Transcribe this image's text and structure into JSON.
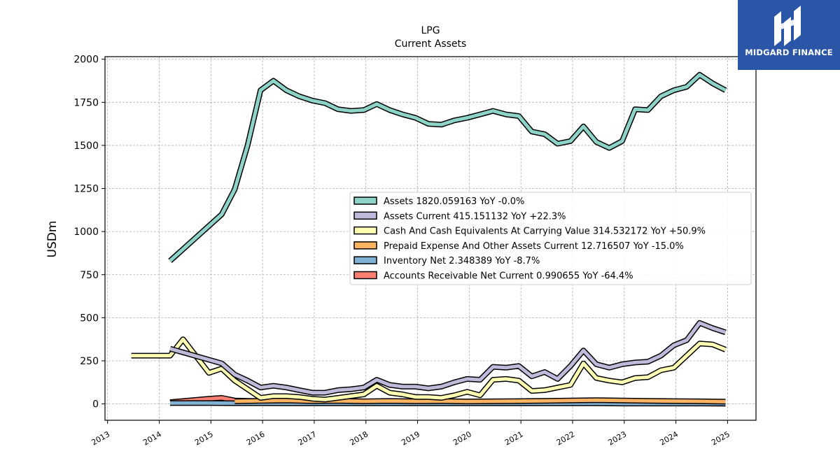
{
  "brand": {
    "name": "MIDGARD FINANCE",
    "bg_color": "#2b56a8",
    "icon": "midgard-logo-icon"
  },
  "chart_data": {
    "type": "line",
    "title": "LPG",
    "subtitle": "Current  Assets",
    "ylabel": "USDm",
    "xlabel": "",
    "xlim": [
      2012.95,
      2025.55
    ],
    "ylim": [
      -95,
      2015
    ],
    "yticks": [
      0,
      250,
      500,
      750,
      1000,
      1250,
      1500,
      1750,
      2000
    ],
    "ytick_labels": [
      "0",
      "250",
      "500",
      "750",
      "1000",
      "1250",
      "1500",
      "1750",
      "2000"
    ],
    "xticks": [
      2013,
      2014,
      2015,
      2016,
      2017,
      2018,
      2019,
      2020,
      2021,
      2022,
      2023,
      2024,
      2025
    ],
    "xtick_labels": [
      "2013",
      "2014",
      "2015",
      "2016",
      "2017",
      "2018",
      "2019",
      "2020",
      "2021",
      "2022",
      "2023",
      "2024",
      "2025"
    ],
    "grid": true,
    "legend_position": "center-right",
    "series": [
      {
        "name": "Assets",
        "legend": "Assets  1820.059163 YoY -0.0%",
        "color": "#8dd3c7",
        "x": [
          2014.21,
          2015.21,
          2015.46,
          2015.71,
          2015.96,
          2016.21,
          2016.46,
          2016.71,
          2016.96,
          2017.21,
          2017.46,
          2017.71,
          2017.96,
          2018.21,
          2018.46,
          2018.71,
          2018.96,
          2019.21,
          2019.46,
          2019.71,
          2019.96,
          2020.21,
          2020.46,
          2020.71,
          2020.96,
          2021.21,
          2021.46,
          2021.71,
          2021.96,
          2022.21,
          2022.46,
          2022.71,
          2022.96,
          2023.21,
          2023.46,
          2023.71,
          2023.96,
          2024.21,
          2024.46,
          2024.71,
          2024.96
        ],
        "y": [
          830,
          1100,
          1245,
          1500,
          1820,
          1875,
          1820,
          1785,
          1760,
          1745,
          1710,
          1700,
          1705,
          1740,
          1705,
          1680,
          1660,
          1625,
          1620,
          1645,
          1660,
          1680,
          1700,
          1680,
          1670,
          1580,
          1565,
          1510,
          1525,
          1610,
          1520,
          1485,
          1525,
          1710,
          1705,
          1785,
          1820,
          1840,
          1910,
          1860,
          1820
        ]
      },
      {
        "name": "Assets Current",
        "legend": "Assets Current  415.151132 YoY +22.3%",
        "color": "#bebada",
        "x": [
          2014.21,
          2015.21,
          2015.46,
          2015.71,
          2015.96,
          2016.21,
          2016.46,
          2016.71,
          2016.96,
          2017.21,
          2017.46,
          2017.71,
          2017.96,
          2018.21,
          2018.46,
          2018.71,
          2018.96,
          2019.21,
          2019.46,
          2019.71,
          2019.96,
          2020.21,
          2020.46,
          2020.71,
          2020.96,
          2021.21,
          2021.46,
          2021.71,
          2021.96,
          2022.21,
          2022.46,
          2022.71,
          2022.96,
          2023.21,
          2023.46,
          2023.71,
          2023.96,
          2024.21,
          2024.46,
          2024.71,
          2024.96
        ],
        "y": [
          320,
          235,
          170,
          135,
          95,
          105,
          95,
          80,
          65,
          65,
          80,
          85,
          95,
          140,
          110,
          100,
          100,
          90,
          100,
          125,
          145,
          140,
          215,
          210,
          220,
          160,
          185,
          145,
          220,
          310,
          230,
          210,
          230,
          240,
          245,
          280,
          340,
          370,
          470,
          440,
          415
        ]
      },
      {
        "name": "Cash And Cash Equivalents At Carrying Value",
        "legend": "Cash And Cash Equivalents At Carrying Value  314.532172 YoY +50.9%",
        "color": "#ffffb3",
        "x": [
          2013.46,
          2014.21,
          2014.46,
          2014.96,
          2015.21,
          2015.46,
          2015.71,
          2015.96,
          2016.21,
          2016.46,
          2016.71,
          2016.96,
          2017.21,
          2017.46,
          2017.71,
          2017.96,
          2018.21,
          2018.46,
          2018.71,
          2018.96,
          2019.21,
          2019.46,
          2019.71,
          2019.96,
          2020.21,
          2020.46,
          2020.71,
          2020.96,
          2021.21,
          2021.46,
          2021.71,
          2021.96,
          2022.21,
          2022.46,
          2022.71,
          2022.96,
          2023.21,
          2023.46,
          2023.71,
          2023.96,
          2024.21,
          2024.46,
          2024.71,
          2024.96
        ],
        "y": [
          280,
          280,
          375,
          180,
          205,
          135,
          85,
          35,
          45,
          45,
          40,
          30,
          25,
          35,
          45,
          55,
          105,
          65,
          55,
          40,
          40,
          35,
          50,
          70,
          50,
          140,
          145,
          135,
          75,
          80,
          95,
          110,
          235,
          150,
          135,
          125,
          150,
          155,
          195,
          210,
          280,
          350,
          345,
          315
        ]
      },
      {
        "name": "Prepaid Expense And Other Assets Current",
        "legend": "Prepaid Expense And Other Assets Current  12.716507 YoY -15.0%",
        "color": "#fdb462",
        "x": [
          2015.46,
          2015.96,
          2016.46,
          2016.96,
          2017.46,
          2017.96,
          2018.46,
          2018.96,
          2019.46,
          2019.96,
          2020.46,
          2020.96,
          2021.46,
          2021.96,
          2022.46,
          2022.96,
          2023.46,
          2023.96,
          2024.46,
          2024.96
        ],
        "y": [
          15,
          18,
          20,
          16,
          18,
          15,
          17,
          15,
          16,
          14,
          15,
          16,
          18,
          20,
          22,
          20,
          18,
          16,
          15,
          13
        ]
      },
      {
        "name": "Inventory Net",
        "legend": "Inventory Net  2.348389 YoY -8.7%",
        "color": "#80b1d3",
        "x": [
          2014.21,
          2014.96,
          2015.46,
          2015.96,
          2016.46,
          2016.96,
          2017.46,
          2017.96,
          2018.46,
          2018.96,
          2019.46,
          2019.96,
          2020.46,
          2020.96,
          2021.46,
          2021.96,
          2022.46,
          2022.96,
          2023.46,
          2023.96,
          2024.46,
          2024.96
        ],
        "y": [
          5,
          5,
          4,
          4,
          3,
          3,
          3,
          3,
          3,
          3,
          3,
          3,
          3,
          3,
          3,
          3,
          3,
          2,
          2,
          2,
          2,
          2
        ]
      },
      {
        "name": "Accounts Receivable Net Current",
        "legend": "Accounts Receivable Net Current  0.990655 YoY -64.4%",
        "color": "#fb8072",
        "x": [
          2014.21,
          2014.96,
          2015.21,
          2015.46,
          2015.71,
          2015.96,
          2016.21,
          2016.71,
          2017.21,
          2017.71,
          2018.21,
          2018.71,
          2019.21,
          2019.71,
          2020.21,
          2020.71,
          2021.21,
          2021.71,
          2022.21,
          2022.71,
          2023.21,
          2023.71,
          2024.21,
          2024.71,
          2024.96
        ],
        "y": [
          10,
          30,
          35,
          20,
          18,
          16,
          5,
          5,
          5,
          5,
          5,
          5,
          5,
          5,
          5,
          5,
          5,
          5,
          5,
          5,
          5,
          5,
          3,
          2,
          1
        ]
      }
    ]
  }
}
